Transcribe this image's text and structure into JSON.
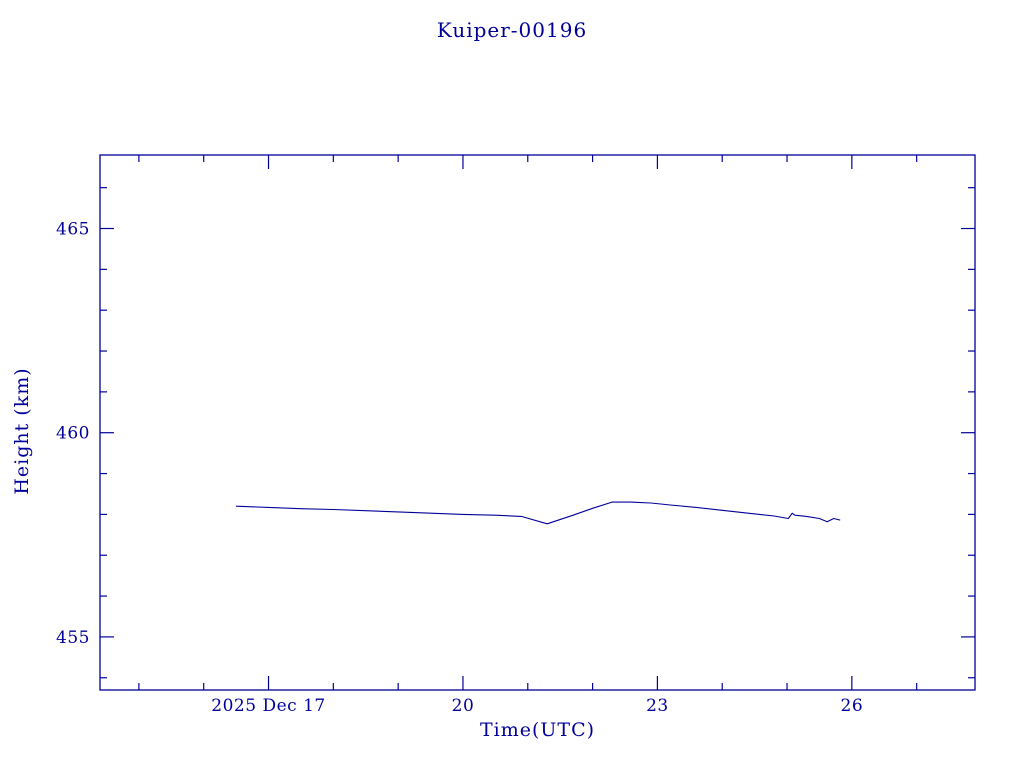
{
  "title": "Kuiper-00196",
  "colors": {
    "accent": "#000099",
    "background": "#ffffff"
  },
  "chart_data": {
    "type": "line",
    "title": "Kuiper-00196",
    "xlabel": "Time(UTC)",
    "ylabel": "Height (km)",
    "xlim": [
      14.4,
      27.9
    ],
    "ylim": [
      453.7,
      466.8
    ],
    "grid": false,
    "legend": null,
    "x_major_ticks": [
      {
        "value": 17,
        "label": "2025 Dec 17"
      },
      {
        "value": 20,
        "label": "20"
      },
      {
        "value": 23,
        "label": "23"
      },
      {
        "value": 26,
        "label": "26"
      }
    ],
    "x_minor_step": 1,
    "y_major_ticks": [
      {
        "value": 455,
        "label": "455"
      },
      {
        "value": 460,
        "label": "460"
      },
      {
        "value": 465,
        "label": "465"
      }
    ],
    "y_minor_step": 1,
    "series": [
      {
        "name": "height",
        "color": "#000099",
        "x": [
          16.5,
          17.0,
          17.5,
          18.0,
          18.5,
          19.0,
          19.5,
          20.0,
          20.5,
          20.9,
          21.3,
          21.7,
          22.0,
          22.3,
          22.6,
          22.9,
          23.2,
          23.6,
          24.0,
          24.4,
          24.8,
          25.02,
          25.08,
          25.12,
          25.3,
          25.5,
          25.62,
          25.72,
          25.82
        ],
        "y": [
          458.2,
          458.17,
          458.14,
          458.12,
          458.09,
          458.06,
          458.03,
          458.0,
          457.98,
          457.95,
          457.77,
          457.98,
          458.15,
          458.3,
          458.3,
          458.28,
          458.23,
          458.17,
          458.1,
          458.03,
          457.96,
          457.9,
          458.03,
          457.98,
          457.95,
          457.9,
          457.82,
          457.9,
          457.86
        ]
      }
    ]
  }
}
